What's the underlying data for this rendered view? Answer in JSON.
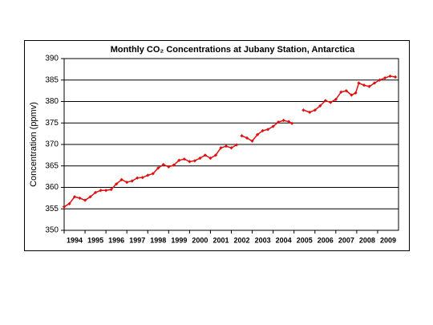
{
  "chart_data": {
    "type": "line",
    "title": "Monthly CO₂ Concentrations at Jubany Station, Antarctica",
    "y_label": "Concentration (ppmv)",
    "x": [
      1994.0,
      1994.25,
      1994.5,
      1994.75,
      1995.0,
      1995.25,
      1995.5,
      1995.75,
      1996.0,
      1996.25,
      1996.5,
      1996.75,
      1997.0,
      1997.25,
      1997.5,
      1997.75,
      1998.0,
      1998.25,
      1998.5,
      1998.75,
      1999.0,
      1999.25,
      1999.5,
      1999.75,
      2000.0,
      2000.25,
      2000.5,
      2000.75,
      2001.0,
      2001.25,
      2001.5,
      2001.75,
      2002.0,
      2002.25,
      2002.4,
      2002.5,
      2002.75,
      2003.0,
      2003.25,
      2003.5,
      2003.75,
      2004.0,
      2004.25,
      2004.5,
      2004.75,
      2004.9,
      2005.2,
      2005.45,
      2005.75,
      2006.0,
      2006.25,
      2006.5,
      2006.75,
      2007.0,
      2007.25,
      2007.5,
      2007.75,
      2007.95,
      2008.1,
      2008.35,
      2008.6,
      2008.85,
      2009.1,
      2009.35,
      2009.6,
      2009.85
    ],
    "series": [
      {
        "name": "CO₂",
        "color": "#dd1111",
        "values": [
          355.5,
          356.2,
          357.8,
          357.5,
          357.0,
          357.8,
          358.8,
          359.3,
          359.3,
          359.5,
          360.8,
          361.8,
          361.2,
          361.5,
          362.2,
          362.3,
          362.8,
          363.2,
          364.5,
          365.3,
          364.8,
          365.2,
          366.3,
          366.6,
          366.0,
          366.2,
          366.8,
          367.5,
          366.8,
          367.5,
          369.2,
          369.6,
          369.2,
          369.9,
          null,
          372.0,
          371.5,
          370.8,
          372.3,
          373.2,
          373.5,
          374.2,
          375.2,
          375.6,
          375.3,
          374.9,
          null,
          378.0,
          377.5,
          378.0,
          379.0,
          380.2,
          379.8,
          380.5,
          382.2,
          382.5,
          381.5,
          382.0,
          384.3,
          383.8,
          383.5,
          384.3,
          385.0,
          385.5,
          385.9,
          385.7
        ]
      }
    ],
    "xlim": [
      1994,
      2010
    ],
    "xticks": [
      1994,
      1995,
      1996,
      1997,
      1998,
      1999,
      2000,
      2001,
      2002,
      2003,
      2004,
      2005,
      2006,
      2007,
      2008,
      2009
    ],
    "ylim": [
      350,
      390
    ],
    "yticks": [
      350,
      355,
      360,
      365,
      370,
      375,
      380,
      385,
      390
    ],
    "grid": true
  }
}
